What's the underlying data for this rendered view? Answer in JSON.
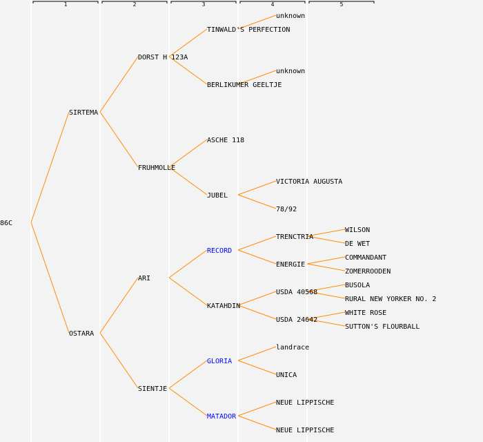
{
  "header": {
    "generations": [
      "1",
      "2",
      "3",
      "4",
      "5"
    ]
  },
  "colors": {
    "background": "#f3f3f3",
    "line": "#ff8c00",
    "text": "#000000",
    "highlight": "#0000ff",
    "divider": "#ffffff"
  },
  "tree": {
    "name": "86C",
    "children": [
      {
        "name": "SIRTEMA",
        "children": [
          {
            "name": "DORST H 123A",
            "children": [
              {
                "name": "TINWALD'S PERFECTION",
                "children": [
                  {
                    "name": "unknown"
                  },
                  null
                ]
              },
              {
                "name": "BERLIKUMER GEELTJE",
                "children": [
                  {
                    "name": "unknown"
                  },
                  null
                ]
              }
            ]
          },
          {
            "name": "FRUHMOLLE",
            "children": [
              {
                "name": "ASCHE 118"
              },
              {
                "name": "JUBEL",
                "children": [
                  {
                    "name": "VICTORIA AUGUSTA"
                  },
                  {
                    "name": "78/92"
                  }
                ]
              }
            ]
          }
        ]
      },
      {
        "name": "OSTARA",
        "children": [
          {
            "name": "ARI",
            "children": [
              {
                "name": "RECORD",
                "highlight": true,
                "children": [
                  {
                    "name": "TRENCTRIA",
                    "children": [
                      {
                        "name": "WILSON"
                      },
                      {
                        "name": "DE WET"
                      }
                    ]
                  },
                  {
                    "name": "ENERGIE",
                    "children": [
                      {
                        "name": "COMMANDANT"
                      },
                      {
                        "name": "ZOMERROODEN"
                      }
                    ]
                  }
                ]
              },
              {
                "name": "KATAHDIN",
                "children": [
                  {
                    "name": "USDA 40568",
                    "children": [
                      {
                        "name": "BUSOLA"
                      },
                      {
                        "name": "RURAL NEW YORKER NO. 2"
                      }
                    ]
                  },
                  {
                    "name": "USDA 24642",
                    "children": [
                      {
                        "name": "WHITE ROSE"
                      },
                      {
                        "name": "SUTTON'S FLOURBALL"
                      }
                    ]
                  }
                ]
              }
            ]
          },
          {
            "name": "SIENTJE",
            "children": [
              {
                "name": "GLORIA",
                "highlight": true,
                "children": [
                  {
                    "name": "landrace"
                  },
                  {
                    "name": "UNICA"
                  }
                ]
              },
              {
                "name": "MATADOR",
                "highlight": true,
                "children": [
                  {
                    "name": "NEUE LIPPISCHE"
                  },
                  {
                    "name": "NEUE LIPPISCHE"
                  }
                ]
              }
            ]
          }
        ]
      }
    ]
  }
}
